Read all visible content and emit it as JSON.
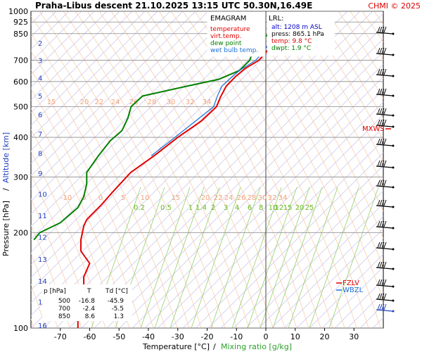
{
  "header": {
    "title": "Praha-Libus   descent   21.10.2025 13:15 UTC   50.30N,16.49E",
    "copyright": "CHMI © 2025"
  },
  "legend_box": {
    "heading": "EMAGRAM",
    "items": [
      {
        "label": "temperature",
        "color": "#e00000"
      },
      {
        "label": "virt.temp.",
        "color": "#e00000"
      },
      {
        "label": "dew point",
        "color": "#008000"
      },
      {
        "label": "wet bulb temp.",
        "color": "#1a6fd6"
      }
    ]
  },
  "lrl_box": {
    "heading": "LRL:",
    "lines": [
      {
        "text": "alt: 1208 m ASL",
        "color": "#0000cc"
      },
      {
        "text": "press: 865.1 hPa",
        "color": "#000000"
      },
      {
        "text": "temp: 9.8 °C",
        "color": "#e00000"
      },
      {
        "text": "dwpt: 1.9 °C",
        "color": "#008000"
      }
    ]
  },
  "level_table": {
    "headers": [
      "p [hPa]",
      "T",
      "Td [°C]"
    ],
    "rows": [
      [
        "500",
        "-16.8",
        "-45.9"
      ],
      [
        "700",
        "-2.4",
        "-5.5"
      ],
      [
        "850",
        "8.6",
        "1.3"
      ]
    ]
  },
  "markers": {
    "mxws": "MXWS",
    "fzlv": "FZLV",
    "wbzl": "WBZL"
  },
  "chart_data": {
    "type": "line",
    "title": "Praha-Libus   descent   21.10.2025 13:15 UTC   50.30N,16.49E",
    "xlabel": "Temperature [°C]",
    "xlabel_extra": "Mixing ratio [g/kg]",
    "ylabel": "Pressure [hPa]",
    "ylabel_extra": "Altitude [km]",
    "xlim": [
      -80,
      40
    ],
    "ylim": [
      1000,
      100
    ],
    "y_scale": "log",
    "x_ticks": [
      -70,
      -60,
      -50,
      -40,
      -30,
      -20,
      -10,
      0,
      10,
      20,
      30
    ],
    "pressure_ticks": [
      100,
      200,
      300,
      400,
      500,
      600,
      700,
      850,
      925,
      1000
    ],
    "altitude_ticks": [
      {
        "km": 16,
        "p": 102
      },
      {
        "km": 15,
        "p": 121
      },
      {
        "km": 14,
        "p": 141
      },
      {
        "km": 13,
        "p": 165
      },
      {
        "km": 12,
        "p": 194
      },
      {
        "km": 11,
        "p": 227
      },
      {
        "km": 10,
        "p": 265
      },
      {
        "km": 9,
        "p": 308
      },
      {
        "km": 8,
        "p": 357
      },
      {
        "km": 7,
        "p": 411
      },
      {
        "km": 6,
        "p": 472
      },
      {
        "km": 5,
        "p": 541
      },
      {
        "km": 4,
        "p": 617
      },
      {
        "km": 3,
        "p": 701
      },
      {
        "km": 2,
        "p": 795
      }
    ],
    "mixing_ratio_labels": {
      "upper": [
        "-10",
        "-5",
        "0",
        "5",
        "10",
        "15",
        "20",
        "22",
        "24",
        "26",
        "28",
        "30",
        "32",
        "34"
      ],
      "top": [
        "15",
        "20",
        "22",
        "24",
        "26",
        "28",
        "30",
        "32",
        "34"
      ],
      "green": [
        "0.2",
        "0.5",
        "1",
        "1.4",
        "2",
        "3",
        "4",
        "6",
        "8",
        "10",
        "12",
        "15",
        "20",
        "25"
      ]
    },
    "series": [
      {
        "name": "temperature",
        "color": "#e00000",
        "points": [
          [
            8.6,
            850
          ],
          [
            5.0,
            800
          ],
          [
            0.5,
            750
          ],
          [
            -2.4,
            700
          ],
          [
            -7,
            660
          ],
          [
            -10.5,
            620
          ],
          [
            -13.5,
            580
          ],
          [
            -15.5,
            535
          ],
          [
            -16.8,
            500
          ],
          [
            -22,
            450
          ],
          [
            -30,
            400
          ],
          [
            -38,
            350
          ],
          [
            -46,
            310
          ],
          [
            -52,
            270
          ],
          [
            -56,
            245
          ],
          [
            -61,
            220
          ],
          [
            -62,
            210
          ],
          [
            -63,
            190
          ],
          [
            -63,
            175
          ],
          [
            -60,
            160
          ],
          [
            -62,
            145
          ],
          [
            -62,
            130
          ],
          [
            -64,
            115
          ],
          [
            -64,
            100
          ]
        ]
      },
      {
        "name": "dew point",
        "color": "#008000",
        "points": [
          [
            1.3,
            850
          ],
          [
            -3,
            800
          ],
          [
            -4.5,
            740
          ],
          [
            -5.5,
            700
          ],
          [
            -9,
            650
          ],
          [
            -16,
            610
          ],
          [
            -27,
            580
          ],
          [
            -42,
            540
          ],
          [
            -45.9,
            500
          ],
          [
            -47,
            460
          ],
          [
            -49,
            420
          ],
          [
            -53,
            390
          ],
          [
            -57,
            350
          ],
          [
            -61,
            310
          ],
          [
            -61,
            285
          ],
          [
            -62,
            260
          ],
          [
            -64,
            240
          ],
          [
            -70,
            215
          ],
          [
            -77,
            200
          ],
          [
            -79,
            190
          ]
        ]
      },
      {
        "name": "wet bulb temp.",
        "color": "#1a6fd6",
        "points": [
          [
            4.5,
            850
          ],
          [
            1.5,
            800
          ],
          [
            -1,
            740
          ],
          [
            -3.5,
            700
          ],
          [
            -9,
            650
          ],
          [
            -12,
            615
          ],
          [
            -15,
            580
          ],
          [
            -16.5,
            540
          ],
          [
            -17.8,
            500
          ],
          [
            -24,
            450
          ],
          [
            -31,
            400
          ],
          [
            -39,
            350
          ]
        ]
      }
    ]
  }
}
